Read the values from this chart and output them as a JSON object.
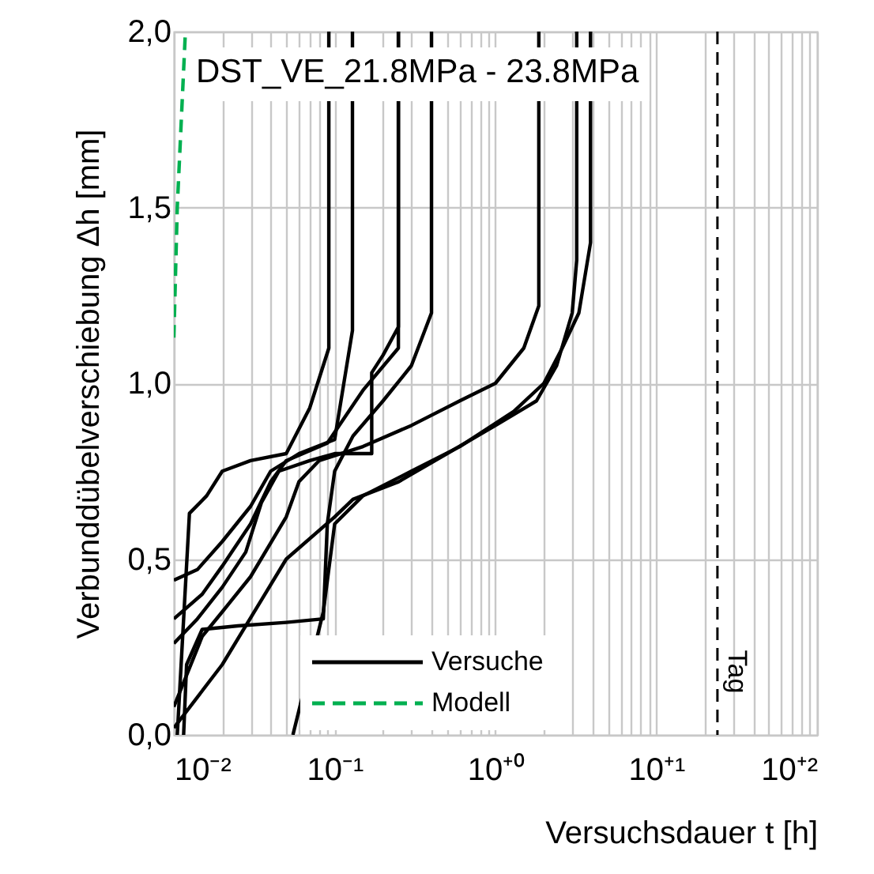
{
  "chart_data": {
    "type": "line",
    "title": "DST_VE_21.8MPa - 23.8MPa",
    "xlabel": "Versuchsdauer t [h]",
    "ylabel": "Verbunddübelverschiebung Δh [mm]",
    "log": "x",
    "xlim": [
      0.01,
      100
    ],
    "ylim": [
      0,
      2
    ],
    "xticks": [
      {
        "value": 0.01,
        "label": "10⁻²"
      },
      {
        "value": 0.02,
        "label": null
      },
      {
        "value": 0.03,
        "label": null
      },
      {
        "value": 0.04,
        "label": null
      },
      {
        "value": 0.05,
        "label": null
      },
      {
        "value": 0.06,
        "label": null
      },
      {
        "value": 0.07,
        "label": null
      },
      {
        "value": 0.08,
        "label": null
      },
      {
        "value": 0.09,
        "label": null
      },
      {
        "value": 0.1,
        "label": "10⁻¹"
      },
      {
        "value": 0.2,
        "label": null
      },
      {
        "value": 0.3,
        "label": null
      },
      {
        "value": 0.4,
        "label": null
      },
      {
        "value": 0.5,
        "label": null
      },
      {
        "value": 0.6,
        "label": null
      },
      {
        "value": 0.7,
        "label": null
      },
      {
        "value": 0.8,
        "label": null
      },
      {
        "value": 0.9,
        "label": null
      },
      {
        "value": 1,
        "label": "10⁺⁰"
      },
      {
        "value": 2,
        "label": null
      },
      {
        "value": 3,
        "label": null
      },
      {
        "value": 4,
        "label": null
      },
      {
        "value": 5,
        "label": null
      },
      {
        "value": 6,
        "label": null
      },
      {
        "value": 7,
        "label": null
      },
      {
        "value": 8,
        "label": null
      },
      {
        "value": 9,
        "label": null
      },
      {
        "value": 10,
        "label": "10⁺¹"
      },
      {
        "value": 20,
        "label": null
      },
      {
        "value": 30,
        "label": null
      },
      {
        "value": 40,
        "label": null
      },
      {
        "value": 50,
        "label": null
      },
      {
        "value": 60,
        "label": null
      },
      {
        "value": 70,
        "label": null
      },
      {
        "value": 80,
        "label": null
      },
      {
        "value": 90,
        "label": null
      },
      {
        "value": 100,
        "label": "10⁺²"
      }
    ],
    "yticks": [
      {
        "value": 0,
        "label": "0,0"
      },
      {
        "value": 0.5,
        "label": "0,5"
      },
      {
        "value": 1,
        "label": "1,0"
      },
      {
        "value": 1.5,
        "label": "1,5"
      },
      {
        "value": 2,
        "label": "2,0"
      }
    ],
    "grid": true,
    "legend": "bottom",
    "ref_lines": [
      {
        "axis": "x",
        "value": 24,
        "label": "Tag",
        "color": "#000000",
        "line_style": "dashed"
      }
    ],
    "series": [
      {
        "name": "Versuche",
        "color": "#000000",
        "x": [
          0.0105,
          0.0125,
          0.016,
          0.02,
          0.03,
          0.05,
          0.07,
          0.092,
          0.092
        ],
        "values": [
          0,
          0.63,
          0.68,
          0.75,
          0.78,
          0.8,
          0.93,
          1.1,
          2
        ]
      },
      {
        "color": "#000000",
        "x": [
          0.01,
          0.014,
          0.02,
          0.03,
          0.04,
          0.06,
          0.1,
          0.129,
          0.129
        ],
        "values": [
          0.44,
          0.47,
          0.55,
          0.65,
          0.75,
          0.8,
          0.84,
          1.15,
          2
        ]
      },
      {
        "color": "#000000",
        "x": [
          0.01,
          0.015,
          0.02,
          0.03,
          0.04,
          0.05,
          0.09,
          0.15,
          0.249,
          0.249
        ],
        "values": [
          0.33,
          0.4,
          0.48,
          0.6,
          0.72,
          0.78,
          0.83,
          0.98,
          1.1,
          2
        ]
      },
      {
        "color": "#000000",
        "x": [
          0.01,
          0.014,
          0.02,
          0.028,
          0.035,
          0.045,
          0.07,
          0.1,
          0.17,
          0.17,
          0.2,
          0.249,
          0.249
        ],
        "values": [
          0.26,
          0.33,
          0.42,
          0.52,
          0.66,
          0.75,
          0.78,
          0.8,
          0.8,
          1.03,
          1.08,
          1.16,
          2
        ]
      },
      {
        "color": "#000000",
        "x": [
          0.0115,
          0.012,
          0.015,
          0.025,
          0.05,
          0.085,
          0.09,
          0.1,
          0.13,
          0.2,
          0.3,
          0.4,
          0.4
        ],
        "values": [
          0,
          0.2,
          0.3,
          0.31,
          0.32,
          0.33,
          0.6,
          0.75,
          0.85,
          0.95,
          1.05,
          1.2,
          2
        ]
      },
      {
        "color": "#000000",
        "x": [
          0.01,
          0.015,
          0.02,
          0.03,
          0.05,
          0.06,
          0.08,
          0.15,
          0.3,
          0.6,
          1,
          1.5,
          1.86,
          1.86
        ],
        "values": [
          0.08,
          0.28,
          0.35,
          0.45,
          0.62,
          0.72,
          0.78,
          0.82,
          0.88,
          0.95,
          1,
          1.1,
          1.22,
          2
        ]
      },
      {
        "color": "#000000",
        "x": [
          0.01,
          0.02,
          0.05,
          0.1,
          0.13,
          0.25,
          0.5,
          1,
          1.8,
          2.4,
          3,
          3.2,
          3.2
        ],
        "values": [
          0.02,
          0.2,
          0.5,
          0.62,
          0.67,
          0.72,
          0.8,
          0.88,
          0.95,
          1.05,
          1.2,
          1.35,
          2
        ]
      },
      {
        "color": "#000000",
        "x": [
          0.055,
          0.085,
          0.1,
          0.15,
          0.3,
          0.6,
          1.3,
          2,
          2.6,
          3.3,
          3.9,
          3.9
        ],
        "values": [
          0,
          0.35,
          0.6,
          0.68,
          0.75,
          0.82,
          0.92,
          1,
          1.1,
          1.2,
          1.4,
          2
        ]
      },
      {
        "name": "Modell",
        "color": "#00b050",
        "line_style": "dashed",
        "x": [
          0.01,
          0.0105,
          0.0118
        ],
        "values": [
          1.13,
          1.5,
          2
        ]
      }
    ]
  }
}
